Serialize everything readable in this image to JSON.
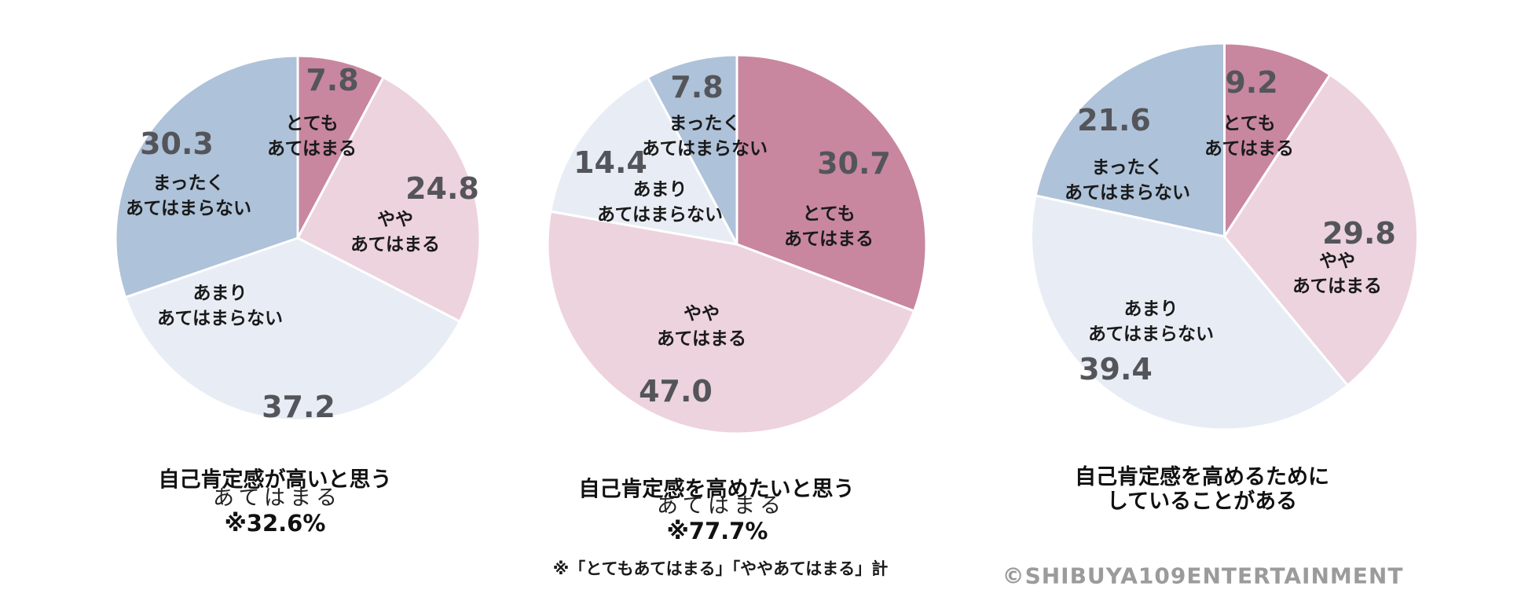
{
  "palette": {
    "slice_colors": [
      "#c8879f",
      "#edd3de",
      "#e8edf5",
      "#aec2d9"
    ],
    "value_text_color": "#54555a",
    "label_text_color": "#1a1a1a",
    "copyright_color": "#9b9b9b",
    "background": "#ffffff",
    "slice_border": "#ffffff"
  },
  "chart_data": [
    {
      "type": "pie",
      "title": "自己肯定感が高いと思う",
      "subtitle": "あてはまる",
      "subtitle_value": "※32.6%",
      "start_angle_deg": 0,
      "direction": "clockwise",
      "slices": [
        {
          "label": "とても\nあてはまる",
          "value": 7.8,
          "display": "7.8"
        },
        {
          "label": "やや\nあてはまる",
          "value": 24.8,
          "display": "24.8"
        },
        {
          "label": "あまり\nあてはまらない",
          "value": 37.2,
          "display": "37.2"
        },
        {
          "label": "まったく\nあてはまらない",
          "value": 30.3,
          "display": "30.3"
        }
      ]
    },
    {
      "type": "pie",
      "title": "自己肯定感を高めたいと思う",
      "subtitle": "あてはまる",
      "subtitle_value": "※77.7%",
      "start_angle_deg": 0,
      "direction": "clockwise",
      "slices": [
        {
          "label": "とても\nあてはまる",
          "value": 30.7,
          "display": "30.7"
        },
        {
          "label": "やや\nあてはまる",
          "value": 47.0,
          "display": "47.0"
        },
        {
          "label": "あまり\nあてはまらない",
          "value": 14.4,
          "display": "14.4"
        },
        {
          "label": "まったく\nあてはまらない",
          "value": 7.8,
          "display": "7.8"
        }
      ]
    },
    {
      "type": "pie",
      "title": "自己肯定感を高めるために\nしていることがある",
      "subtitle": "",
      "subtitle_value": "",
      "start_angle_deg": 0,
      "direction": "clockwise",
      "slices": [
        {
          "label": "とても\nあてはまる",
          "value": 9.2,
          "display": "9.2"
        },
        {
          "label": "やや\nあてはまる",
          "value": 29.8,
          "display": "29.8"
        },
        {
          "label": "あまり\nあてはまらない",
          "value": 39.4,
          "display": "39.4"
        },
        {
          "label": "まったく\nあてはまらない",
          "value": 21.6,
          "display": "21.6"
        }
      ]
    }
  ],
  "footnote": "※「とてもあてはまる」「ややあてはまる」計",
  "copyright": "©SHIBUYA109ENTERTAINMENT"
}
